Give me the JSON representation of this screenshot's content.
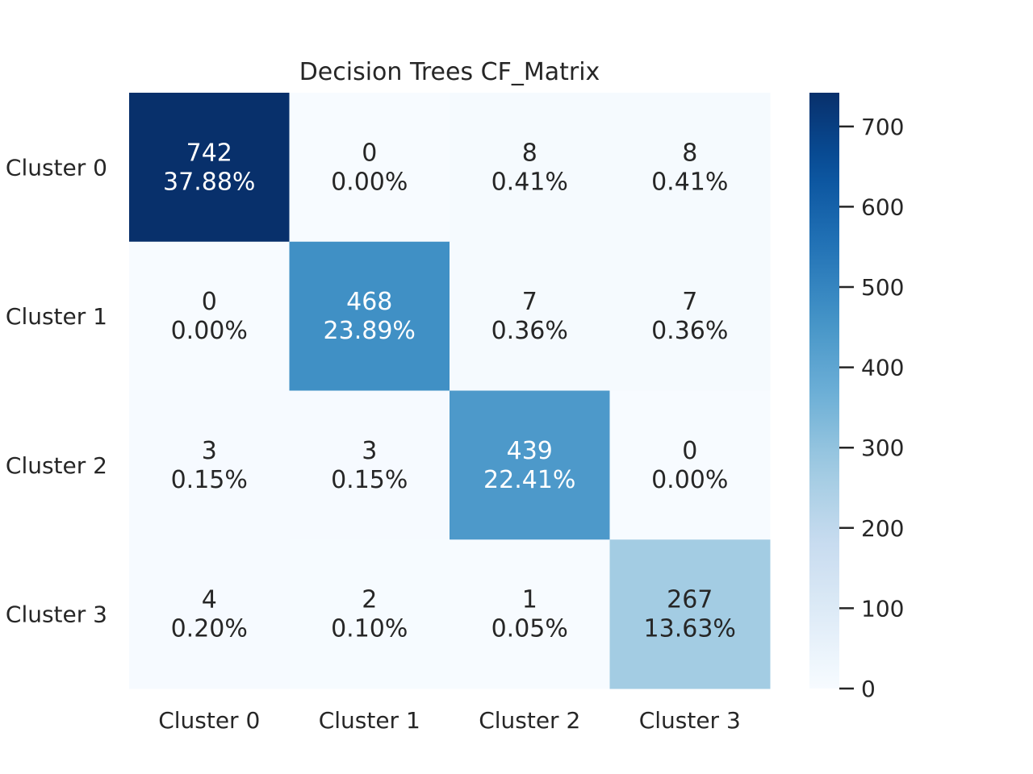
{
  "chart_data": {
    "type": "heatmap",
    "title": "Decision Trees CF_Matrix",
    "row_labels": [
      "Cluster 0",
      "Cluster 1",
      "Cluster 2",
      "Cluster 3"
    ],
    "col_labels": [
      "Cluster 0",
      "Cluster 1",
      "Cluster 2",
      "Cluster 3"
    ],
    "values": [
      [
        742,
        0,
        8,
        8
      ],
      [
        0,
        468,
        7,
        7
      ],
      [
        3,
        3,
        439,
        0
      ],
      [
        4,
        2,
        1,
        267
      ]
    ],
    "percentages": [
      [
        "37.88%",
        "0.00%",
        "0.41%",
        "0.41%"
      ],
      [
        "0.00%",
        "23.89%",
        "0.36%",
        "0.36%"
      ],
      [
        "0.15%",
        "0.15%",
        "22.41%",
        "0.00%"
      ],
      [
        "0.20%",
        "0.10%",
        "0.05%",
        "13.63%"
      ]
    ],
    "colormap": "Blues",
    "colorbar": {
      "vmin": 0,
      "vmax": 742,
      "ticks": [
        0,
        100,
        200,
        300,
        400,
        500,
        600,
        700
      ]
    }
  }
}
